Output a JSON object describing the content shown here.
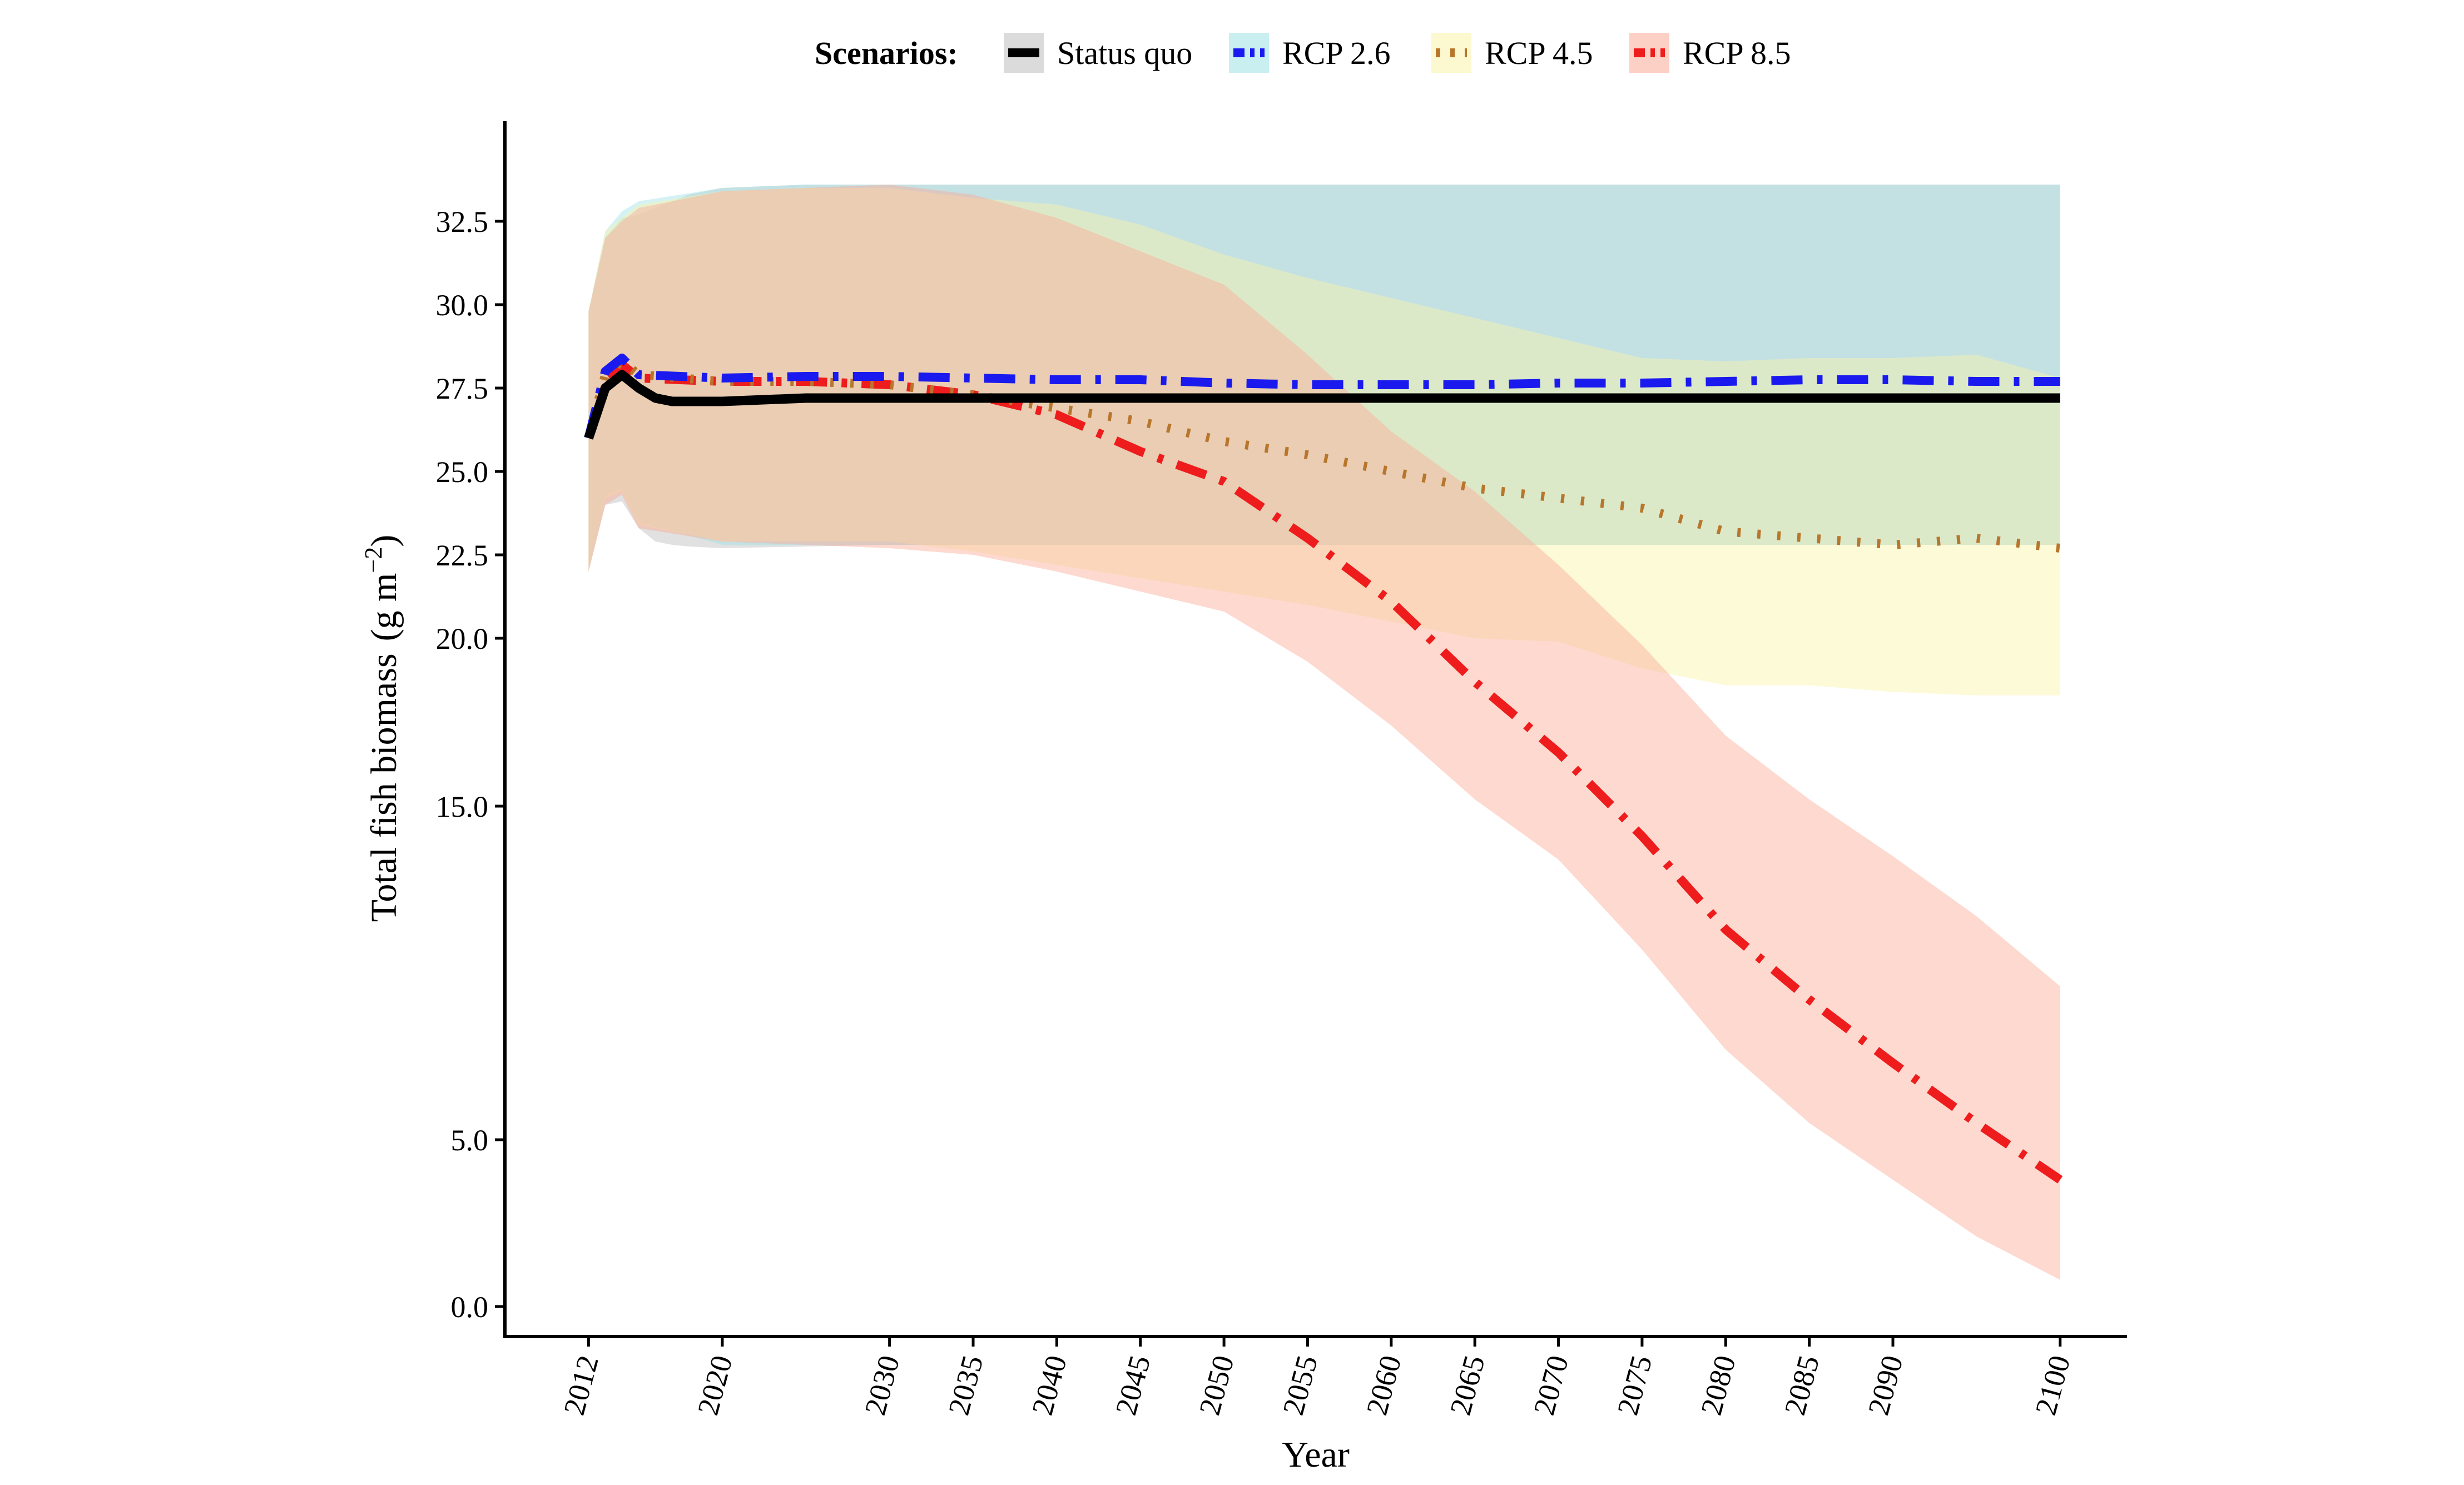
{
  "chart_data": {
    "type": "line",
    "xlabel": "Year",
    "ylabel": "Total fish biomass",
    "ylabel_unit": "(g m−2)",
    "legend_title": "Scenarios:",
    "legend_position": "top",
    "grid": false,
    "ylim": [
      -0.8,
      35.5
    ],
    "xlim": [
      2007,
      2104
    ],
    "x_ticks": [
      2012,
      2020,
      2030,
      2035,
      2040,
      2045,
      2050,
      2055,
      2060,
      2065,
      2070,
      2075,
      2080,
      2085,
      2090,
      2100
    ],
    "x_tick_labels": [
      "2012",
      "2020",
      "2030",
      "2035",
      "2040",
      "2045",
      "2050",
      "2055",
      "2060",
      "2065",
      "2070",
      "2075",
      "2080",
      "2085",
      "2090",
      "2100"
    ],
    "y_ticks": [
      0,
      5,
      15,
      20,
      22.5,
      25,
      27.5,
      30,
      32.5
    ],
    "y_tick_labels": [
      "0.0",
      "5.0",
      "15.0",
      "20.0",
      "22.5",
      "25.0",
      "27.5",
      "30.0",
      "32.5"
    ],
    "series": [
      {
        "name": "Status quo",
        "color": "#000000",
        "style": "solid",
        "band_color": "#bdbdbd",
        "x": [
          2012,
          2013,
          2014,
          2015,
          2016,
          2017,
          2018,
          2020,
          2025,
          2030,
          2040,
          2050,
          2060,
          2070,
          2080,
          2090,
          2100
        ],
        "values": [
          26.0,
          27.5,
          27.9,
          27.5,
          27.2,
          27.1,
          27.1,
          27.1,
          27.2,
          27.2,
          27.2,
          27.2,
          27.2,
          27.2,
          27.2,
          27.2,
          27.2
        ],
        "lower": [
          22.0,
          24.0,
          24.1,
          23.3,
          22.9,
          22.8,
          22.75,
          22.7,
          22.75,
          22.8,
          22.8,
          22.8,
          22.8,
          22.8,
          22.8,
          22.8,
          22.8
        ],
        "upper": [
          29.8,
          32.0,
          32.6,
          32.7,
          32.9,
          33.1,
          33.3,
          33.5,
          33.6,
          33.6,
          33.6,
          33.6,
          33.6,
          33.6,
          33.6,
          33.6,
          33.6
        ]
      },
      {
        "name": "RCP 2.6",
        "color": "#1a1aee",
        "style": "dashdot",
        "band_color": "#9fe2e6",
        "x": [
          2012,
          2013,
          2014,
          2015,
          2020,
          2025,
          2030,
          2035,
          2040,
          2045,
          2050,
          2055,
          2060,
          2065,
          2070,
          2075,
          2080,
          2085,
          2090,
          2095,
          2100
        ],
        "values": [
          26.0,
          28.0,
          28.4,
          27.9,
          27.8,
          27.85,
          27.85,
          27.8,
          27.75,
          27.75,
          27.65,
          27.6,
          27.6,
          27.6,
          27.65,
          27.65,
          27.7,
          27.75,
          27.75,
          27.7,
          27.7
        ],
        "lower": [
          22.0,
          24.3,
          24.5,
          23.5,
          22.8,
          22.8,
          22.8,
          22.8,
          22.8,
          22.8,
          22.8,
          22.8,
          22.8,
          22.8,
          22.8,
          22.8,
          22.8,
          22.8,
          22.8,
          22.8,
          22.8
        ],
        "upper": [
          29.8,
          32.2,
          32.8,
          33.1,
          33.5,
          33.6,
          33.6,
          33.6,
          33.6,
          33.6,
          33.6,
          33.6,
          33.6,
          33.6,
          33.6,
          33.6,
          33.6,
          33.6,
          33.6,
          33.6,
          33.6
        ]
      },
      {
        "name": "RCP 4.5",
        "color": "#b8762c",
        "style": "dotted",
        "band_color": "#faf3a8",
        "x": [
          2012,
          2013,
          2014,
          2015,
          2020,
          2025,
          2030,
          2035,
          2040,
          2045,
          2050,
          2055,
          2060,
          2065,
          2070,
          2075,
          2080,
          2085,
          2090,
          2095,
          2100
        ],
        "values": [
          26.0,
          27.9,
          28.3,
          27.9,
          27.7,
          27.7,
          27.6,
          27.3,
          26.9,
          26.5,
          25.9,
          25.5,
          25.0,
          24.5,
          24.2,
          23.9,
          23.2,
          23.0,
          22.8,
          23.0,
          22.7
        ],
        "lower": [
          22.0,
          24.2,
          24.4,
          23.4,
          22.9,
          22.9,
          22.9,
          22.6,
          22.2,
          21.8,
          21.4,
          21.0,
          20.5,
          20.0,
          19.9,
          19.1,
          18.6,
          18.6,
          18.4,
          18.3,
          18.3
        ],
        "upper": [
          29.8,
          32.2,
          32.6,
          33.0,
          33.4,
          33.5,
          33.5,
          33.2,
          33.0,
          32.4,
          31.5,
          30.8,
          30.2,
          29.6,
          29.0,
          28.4,
          28.3,
          28.4,
          28.4,
          28.5,
          27.8
        ]
      },
      {
        "name": "RCP 8.5",
        "color": "#ee1c1c",
        "style": "dashdot",
        "band_color": "#fbaa96",
        "x": [
          2012,
          2013,
          2014,
          2015,
          2020,
          2025,
          2030,
          2035,
          2040,
          2045,
          2050,
          2055,
          2060,
          2065,
          2070,
          2075,
          2080,
          2085,
          2090,
          2095,
          2100
        ],
        "values": [
          26.0,
          27.8,
          28.2,
          27.8,
          27.7,
          27.7,
          27.6,
          27.3,
          26.7,
          25.6,
          24.7,
          23.0,
          21.1,
          18.7,
          16.6,
          14.1,
          11.3,
          9.2,
          7.3,
          5.5,
          3.8
        ],
        "lower": [
          22.0,
          24.0,
          24.3,
          23.3,
          22.9,
          22.8,
          22.7,
          22.5,
          22.0,
          21.4,
          20.8,
          19.3,
          17.4,
          15.2,
          13.4,
          10.7,
          7.7,
          5.5,
          3.8,
          2.1,
          0.8
        ],
        "upper": [
          29.8,
          32.0,
          32.5,
          32.9,
          33.4,
          33.5,
          33.6,
          33.3,
          32.6,
          31.6,
          30.6,
          28.5,
          26.2,
          24.4,
          22.2,
          19.8,
          17.1,
          15.2,
          13.5,
          11.7,
          9.6
        ]
      }
    ]
  }
}
